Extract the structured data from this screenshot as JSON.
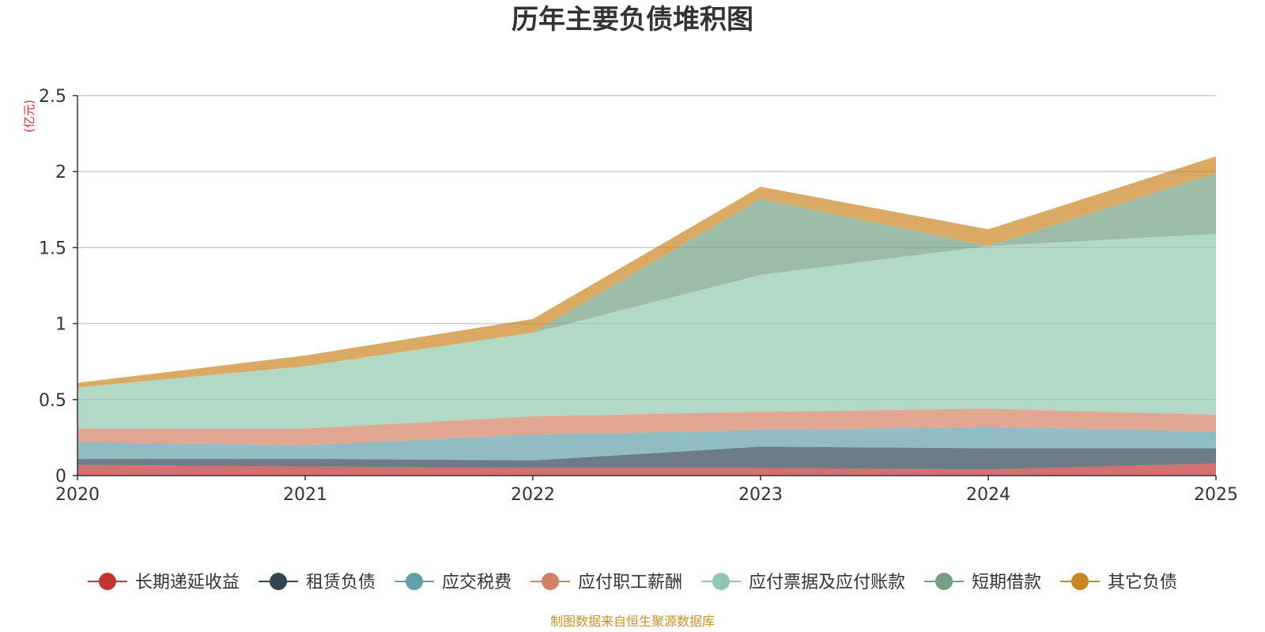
{
  "chart_data": {
    "type": "area",
    "stacked": true,
    "title": "历年主要负债堆积图",
    "ylabel": "(亿元)",
    "xlabel": "",
    "categories": [
      "2020",
      "2021",
      "2022",
      "2023",
      "2024",
      "2025"
    ],
    "ylim": [
      0,
      2.5
    ],
    "yticks": [
      0,
      0.5,
      1,
      1.5,
      2,
      2.5
    ],
    "ytick_labels": [
      "0",
      "0.5",
      "1",
      "1.5",
      "2",
      "2.5"
    ],
    "grid": true,
    "legend_position": "bottom",
    "source_note": "制图数据来自恒生聚源数据库",
    "series": [
      {
        "name": "长期递延收益",
        "color": "#c23531",
        "values": [
          0.07,
          0.06,
          0.05,
          0.05,
          0.04,
          0.08
        ]
      },
      {
        "name": "租赁负债",
        "color": "#2f4554",
        "values": [
          0.04,
          0.05,
          0.05,
          0.14,
          0.14,
          0.1
        ]
      },
      {
        "name": "应交税费",
        "color": "#61a0a8",
        "values": [
          0.11,
          0.09,
          0.17,
          0.11,
          0.14,
          0.11
        ]
      },
      {
        "name": "应付职工薪酬",
        "color": "#d48265",
        "values": [
          0.09,
          0.11,
          0.12,
          0.12,
          0.12,
          0.11
        ]
      },
      {
        "name": "应付票据及应付账款",
        "color": "#91c7ae",
        "values": [
          0.27,
          0.41,
          0.55,
          0.9,
          1.07,
          1.19
        ]
      },
      {
        "name": "短期借款",
        "color": "#749f83",
        "values": [
          0.0,
          0.0,
          0.0,
          0.5,
          0.0,
          0.4
        ]
      },
      {
        "name": "其它负债",
        "color": "#ca8622",
        "values": [
          0.03,
          0.07,
          0.09,
          0.08,
          0.11,
          0.11
        ]
      }
    ]
  }
}
